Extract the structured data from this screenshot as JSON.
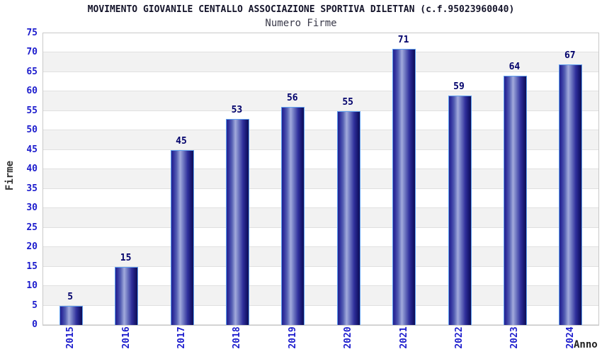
{
  "header": {
    "title": "MOVIMENTO GIOVANILE CENTALLO ASSOCIAZIONE SPORTIVA DILETTAN (c.f.95023960040)",
    "subtitle": "Numero Firme"
  },
  "chart_data": {
    "type": "bar",
    "title": "MOVIMENTO GIOVANILE CENTALLO ASSOCIAZIONE SPORTIVA DILETTAN (c.f.95023960040)",
    "subtitle": "Numero Firme",
    "categories": [
      "2015",
      "2016",
      "2017",
      "2018",
      "2019",
      "2020",
      "2021",
      "2022",
      "2023",
      "2024"
    ],
    "values": [
      5,
      15,
      45,
      53,
      56,
      55,
      71,
      59,
      64,
      67
    ],
    "xlabel": "Anno",
    "ylabel": "Firme",
    "ylim": [
      0,
      75
    ],
    "ytick_step": 5,
    "grid": "horizontal-bands-alternating",
    "legend": "none",
    "colors": {
      "tick_label": "#1c1ccd",
      "value_label": "#00006b",
      "bar_dark": "#0e0e55",
      "bar_mid": "#2e2e9c",
      "bar_highlight": "#a2aadc",
      "bar_outline": "#5f9ff0",
      "band_gray": "#f2f2f2",
      "band_white": "#ffffff",
      "gridline": "#e0e0e0",
      "plot_border": "#c9c9c9",
      "title_color": "#14142a",
      "subtitle_color": "#3a3a4a",
      "axis_label_color": "#333333"
    }
  }
}
